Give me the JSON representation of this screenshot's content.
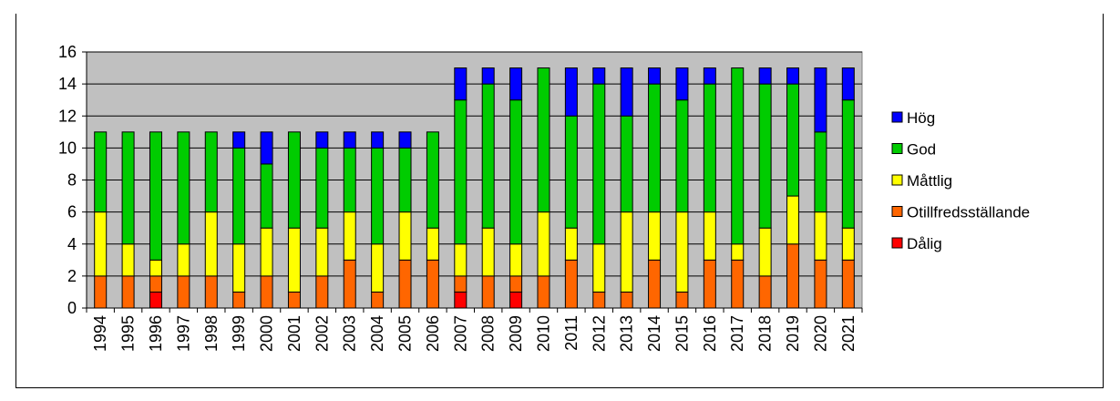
{
  "chart_data": {
    "type": "bar",
    "stacked": true,
    "categories": [
      "1994",
      "1995",
      "1996",
      "1997",
      "1998",
      "1999",
      "2000",
      "2001",
      "2002",
      "2003",
      "2004",
      "2005",
      "2006",
      "2007",
      "2008",
      "2009",
      "2010",
      "2011",
      "2012",
      "2013",
      "2014",
      "2015",
      "2016",
      "2017",
      "2018",
      "2019",
      "2020",
      "2021"
    ],
    "series": [
      {
        "name": "Dålig",
        "color": "#ff0000",
        "values": [
          0,
          0,
          1,
          0,
          0,
          0,
          0,
          0,
          0,
          0,
          0,
          0,
          0,
          1,
          0,
          1,
          0,
          0,
          0,
          0,
          0,
          0,
          0,
          0,
          0,
          0,
          0,
          0
        ]
      },
      {
        "name": "Otillfredsställande",
        "color": "#ff6600",
        "values": [
          2,
          2,
          1,
          2,
          2,
          1,
          2,
          1,
          2,
          3,
          1,
          3,
          3,
          1,
          2,
          1,
          2,
          3,
          1,
          1,
          3,
          1,
          3,
          3,
          2,
          4,
          3,
          3
        ]
      },
      {
        "name": "Måttlig",
        "color": "#ffff00",
        "values": [
          4,
          2,
          1,
          2,
          4,
          3,
          3,
          4,
          3,
          3,
          3,
          3,
          2,
          2,
          3,
          2,
          4,
          2,
          3,
          5,
          3,
          5,
          3,
          1,
          3,
          3,
          3,
          2
        ]
      },
      {
        "name": "God",
        "color": "#00cc00",
        "values": [
          5,
          7,
          8,
          7,
          5,
          6,
          4,
          6,
          5,
          4,
          6,
          4,
          6,
          9,
          9,
          9,
          9,
          7,
          10,
          6,
          8,
          7,
          8,
          11,
          9,
          7,
          5,
          8
        ]
      },
      {
        "name": "Hög",
        "color": "#0000ff",
        "values": [
          0,
          0,
          0,
          0,
          0,
          1,
          2,
          0,
          1,
          1,
          1,
          1,
          0,
          2,
          1,
          2,
          0,
          3,
          1,
          3,
          1,
          2,
          1,
          0,
          1,
          1,
          4,
          2
        ]
      }
    ],
    "legend_order": [
      "Hög",
      "God",
      "Måttlig",
      "Otillfredsställande",
      "Dålig"
    ],
    "yticks": [
      "0",
      "2",
      "4",
      "6",
      "8",
      "10",
      "12",
      "14",
      "16"
    ],
    "ylim": [
      0,
      16
    ],
    "grid": true,
    "legend_position": "right",
    "plot_background": "#c0c0c0"
  }
}
